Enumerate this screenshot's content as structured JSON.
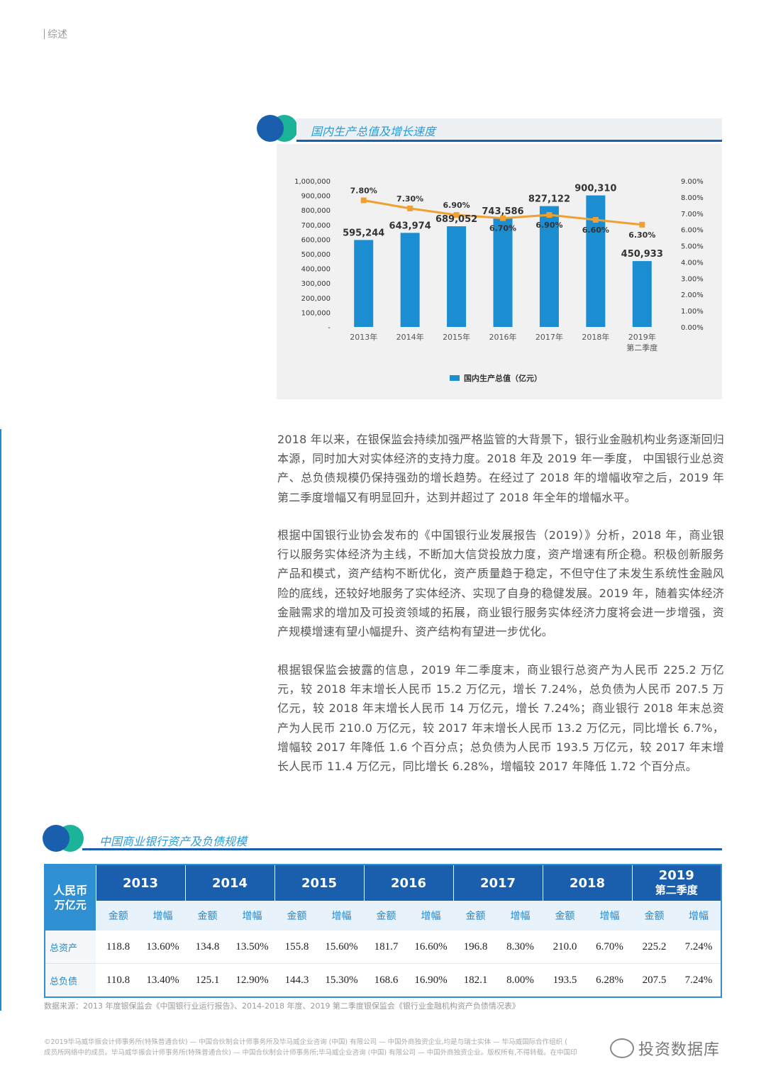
{
  "header": {
    "section": "综述"
  },
  "chart_block": {
    "title": "国内生产总值及增长速度"
  },
  "chart_data": {
    "type": "bar",
    "categories": [
      "2013年",
      "2014年",
      "2015年",
      "2016年",
      "2017年",
      "2018年",
      "2019年\n第二季度"
    ],
    "category_lines": [
      [
        "2013年"
      ],
      [
        "2014年"
      ],
      [
        "2015年"
      ],
      [
        "2016年"
      ],
      [
        "2017年"
      ],
      [
        "2018年"
      ],
      [
        "2019年",
        "第二季度"
      ]
    ],
    "series": [
      {
        "name": "国内生产总值（亿元）",
        "type": "bar",
        "axis": "left",
        "values": [
          595244,
          643974,
          689052,
          743586,
          827122,
          900310,
          450933
        ],
        "labels": [
          "595,244",
          "643,974",
          "689,052",
          "743,586",
          "827,122",
          "900,310",
          "450,933"
        ]
      },
      {
        "type": "line",
        "axis": "right",
        "values": [
          7.8,
          7.3,
          6.9,
          6.7,
          6.9,
          6.6,
          6.3
        ],
        "labels": [
          "7.80%",
          "7.30%",
          "6.90%",
          "6.70%",
          "6.90%",
          "6.60%",
          "6.30%"
        ]
      }
    ],
    "ylim": [
      0,
      1000000
    ],
    "y2lim": [
      0,
      9
    ],
    "yticks": [
      "-",
      "100,000",
      "200,000",
      "300,000",
      "400,000",
      "500,000",
      "600,000",
      "700,000",
      "800,000",
      "900,000",
      "1,000,000"
    ],
    "y2ticks": [
      "0.00%",
      "1.00%",
      "2.00%",
      "3.00%",
      "4.00%",
      "5.00%",
      "6.00%",
      "7.00%",
      "8.00%",
      "9.00%"
    ],
    "legend": "国内生产总值（亿元）",
    "legend_position": "bottom",
    "colors": {
      "bar": "#1a8ed0",
      "line": "#f0a030"
    }
  },
  "paragraphs": [
    "2018 年以来，在银保监会持续加强严格监管的大背景下，银行业金融机构业务逐渐回归本源，同时加大对实体经济的支持力度。2018 年及 2019 年一季度， 中国银行业总资产、总负债规模仍保持强劲的增长趋势。在经过了 2018 年的增幅收窄之后，2019 年第二季度增幅又有明显回升，达到并超过了 2018 年全年的增幅水平。",
    "根据中国银行业协会发布的《中国银行业发展报告（2019）》分析，2018 年，商业银行以服务实体经济为主线，不断加大信贷投放力度，资产增速有所企稳。积极创新服务产品和模式，资产结构不断优化，资产质量趋于稳定，不但守住了未发生系统性金融风险的底线，还较好地服务了实体经济、实现了自身的稳健发展。2019 年，随着实体经济金融需求的增加及可投资领域的拓展，商业银行服务实体经济力度将会进一步增强，资产规模增速有望小幅提升、资产结构有望进一步优化。",
    "根据银保监会披露的信息，2019 年二季度末，商业银行总资产为人民币 225.2 万亿元，较 2018 年末增长人民币 15.2 万亿元，增长 7.24%，总负债为人民币 207.5 万亿元，较 2018 年末增长人民币 14 万亿元，增长 7.24%；商业银行 2018 年末总资产为人民币 210.0 万亿元，较 2017 年末增长人民币 13.2 万亿元，同比增长 6.7%，增幅较 2017 年降低 1.6 个百分点；总负债为人民币 193.5 万亿元，较 2017 年末增长人民币 11.4 万亿元，同比增长 6.28%，增幅较 2017 年降低 1.72 个百分点。"
  ],
  "table_block": {
    "title": "中国商业银行资产及负债规模",
    "unit_line1": "人民币",
    "unit_line2": "万亿元",
    "years": [
      {
        "line1": "2013",
        "line2": ""
      },
      {
        "line1": "2014",
        "line2": ""
      },
      {
        "line1": "2015",
        "line2": ""
      },
      {
        "line1": "2016",
        "line2": ""
      },
      {
        "line1": "2017",
        "line2": ""
      },
      {
        "line1": "2018",
        "line2": ""
      },
      {
        "line1": "2019",
        "line2": "第二季度"
      }
    ],
    "sub_amount": "金额",
    "sub_growth": "增幅",
    "rows": [
      {
        "label": "总资产",
        "cells": [
          "118.8",
          "13.60%",
          "134.8",
          "13.50%",
          "155.8",
          "15.60%",
          "181.7",
          "16.60%",
          "196.8",
          "8.30%",
          "210.0",
          "6.70%",
          "225.2",
          "7.24%"
        ]
      },
      {
        "label": "总负债",
        "cells": [
          "110.8",
          "13.40%",
          "125.1",
          "12.90%",
          "144.3",
          "15.30%",
          "168.6",
          "16.90%",
          "182.1",
          "8.00%",
          "193.5",
          "6.28%",
          "207.5",
          "7.24%"
        ]
      }
    ]
  },
  "source_note": "数据来源：2013 年度银保监会《中国银行业运行报告》、2014-2018 年度、2019 第二季度银保监会《银行业金融机构资产负债情况表》",
  "footer": {
    "line1": "©2019毕马威华振会计师事务所(特殊普通合伙) — 中国合伙制会计师事务所及毕马威企业咨询 (中国) 有限公司 — 中国外商独资企业,均是与瑞士实体 — 毕马威国际合作组织 (",
    "line2": "成员所网络中的成员。毕马威华振会计师事务所(特殊普通合伙) — 中国合伙制会计师事务所;毕马威企业咨询 (中国) 有限公司 — 中国外商独资企业。版权所有,不得转载。在中国印"
  },
  "watermark": "投资数据库"
}
